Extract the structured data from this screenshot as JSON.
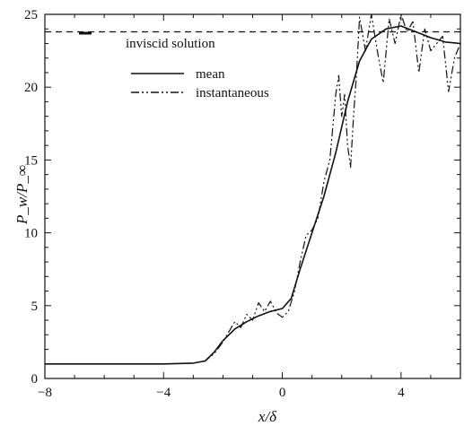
{
  "chart_data": {
    "type": "line",
    "title": "",
    "xlabel": "x/δ",
    "ylabel": "P_w/P_∞",
    "xlim": [
      -8,
      6
    ],
    "ylim": [
      0,
      25
    ],
    "x_ticks": [
      -8,
      -4,
      0,
      4
    ],
    "y_ticks": [
      0,
      5,
      10,
      15,
      20,
      25
    ],
    "grid": false,
    "legend_position": "top-left",
    "reference": {
      "name": "inviscid solution",
      "value": 23.8,
      "style": "dashed"
    },
    "series": [
      {
        "name": "mean",
        "style": "solid",
        "x": [
          -8,
          -6,
          -4,
          -3,
          -2.6,
          -2.3,
          -2.0,
          -1.6,
          -1.2,
          -0.8,
          -0.4,
          0.0,
          0.3,
          0.6,
          1.0,
          1.4,
          1.8,
          2.2,
          2.6,
          3.0,
          3.5,
          4.0,
          4.5,
          5.0,
          5.5,
          6.0
        ],
        "values": [
          1.0,
          1.0,
          1.0,
          1.05,
          1.2,
          1.8,
          2.6,
          3.4,
          3.9,
          4.3,
          4.6,
          4.8,
          5.5,
          7.5,
          10.0,
          12.5,
          15.5,
          19.0,
          21.8,
          23.3,
          24.0,
          24.2,
          23.8,
          23.4,
          23.1,
          23.0
        ]
      },
      {
        "name": "instantaneous",
        "style": "dash-dot-dot",
        "x": [
          -8,
          -6,
          -4,
          -3,
          -2.6,
          -2.3,
          -2.0,
          -1.8,
          -1.6,
          -1.4,
          -1.2,
          -1.0,
          -0.8,
          -0.6,
          -0.4,
          -0.2,
          0.0,
          0.2,
          0.4,
          0.6,
          0.8,
          1.0,
          1.2,
          1.4,
          1.6,
          1.8,
          1.9,
          2.0,
          2.1,
          2.2,
          2.3,
          2.4,
          2.5,
          2.6,
          2.8,
          3.0,
          3.2,
          3.4,
          3.6,
          3.8,
          4.0,
          4.2,
          4.4,
          4.6,
          4.8,
          5.0,
          5.2,
          5.4,
          5.6,
          5.8,
          6.0
        ],
        "values": [
          1.0,
          1.0,
          1.0,
          1.05,
          1.2,
          1.7,
          2.5,
          3.2,
          3.9,
          3.5,
          4.4,
          4.0,
          5.2,
          4.6,
          5.3,
          4.5,
          4.2,
          4.6,
          5.9,
          8.0,
          9.8,
          10.2,
          11.0,
          13.5,
          15.0,
          19.5,
          20.8,
          18.0,
          19.5,
          16.0,
          14.5,
          18.0,
          21.0,
          24.8,
          22.5,
          25.0,
          22.5,
          20.3,
          24.7,
          23.0,
          25.0,
          23.8,
          24.5,
          21.0,
          24.0,
          22.5,
          23.0,
          23.5,
          19.7,
          22.0,
          23.0
        ]
      }
    ]
  }
}
